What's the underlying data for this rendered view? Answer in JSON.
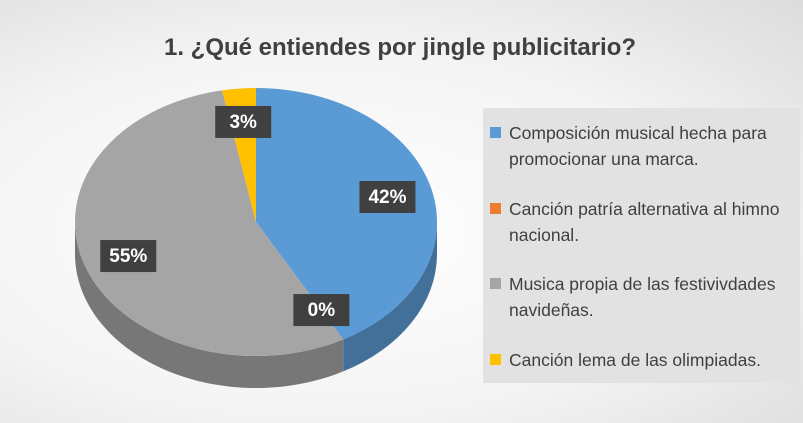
{
  "chart_data": {
    "type": "pie",
    "title": "1. ¿Qué entiendes por jingle publicitario?",
    "categories": [
      "Composición musical hecha para promocionar una marca.",
      "Canción patría alternativa al himno nacional.",
      "Musica propia de las festivivdades navideñas.",
      "Canción lema de las olimpiadas."
    ],
    "values": [
      42,
      0,
      55,
      3
    ],
    "value_labels": [
      "42%",
      "0%",
      "55%",
      "3%"
    ],
    "colors": [
      "#5b9bd5",
      "#ed7d31",
      "#a5a5a5",
      "#ffc000"
    ],
    "legend": "right"
  }
}
